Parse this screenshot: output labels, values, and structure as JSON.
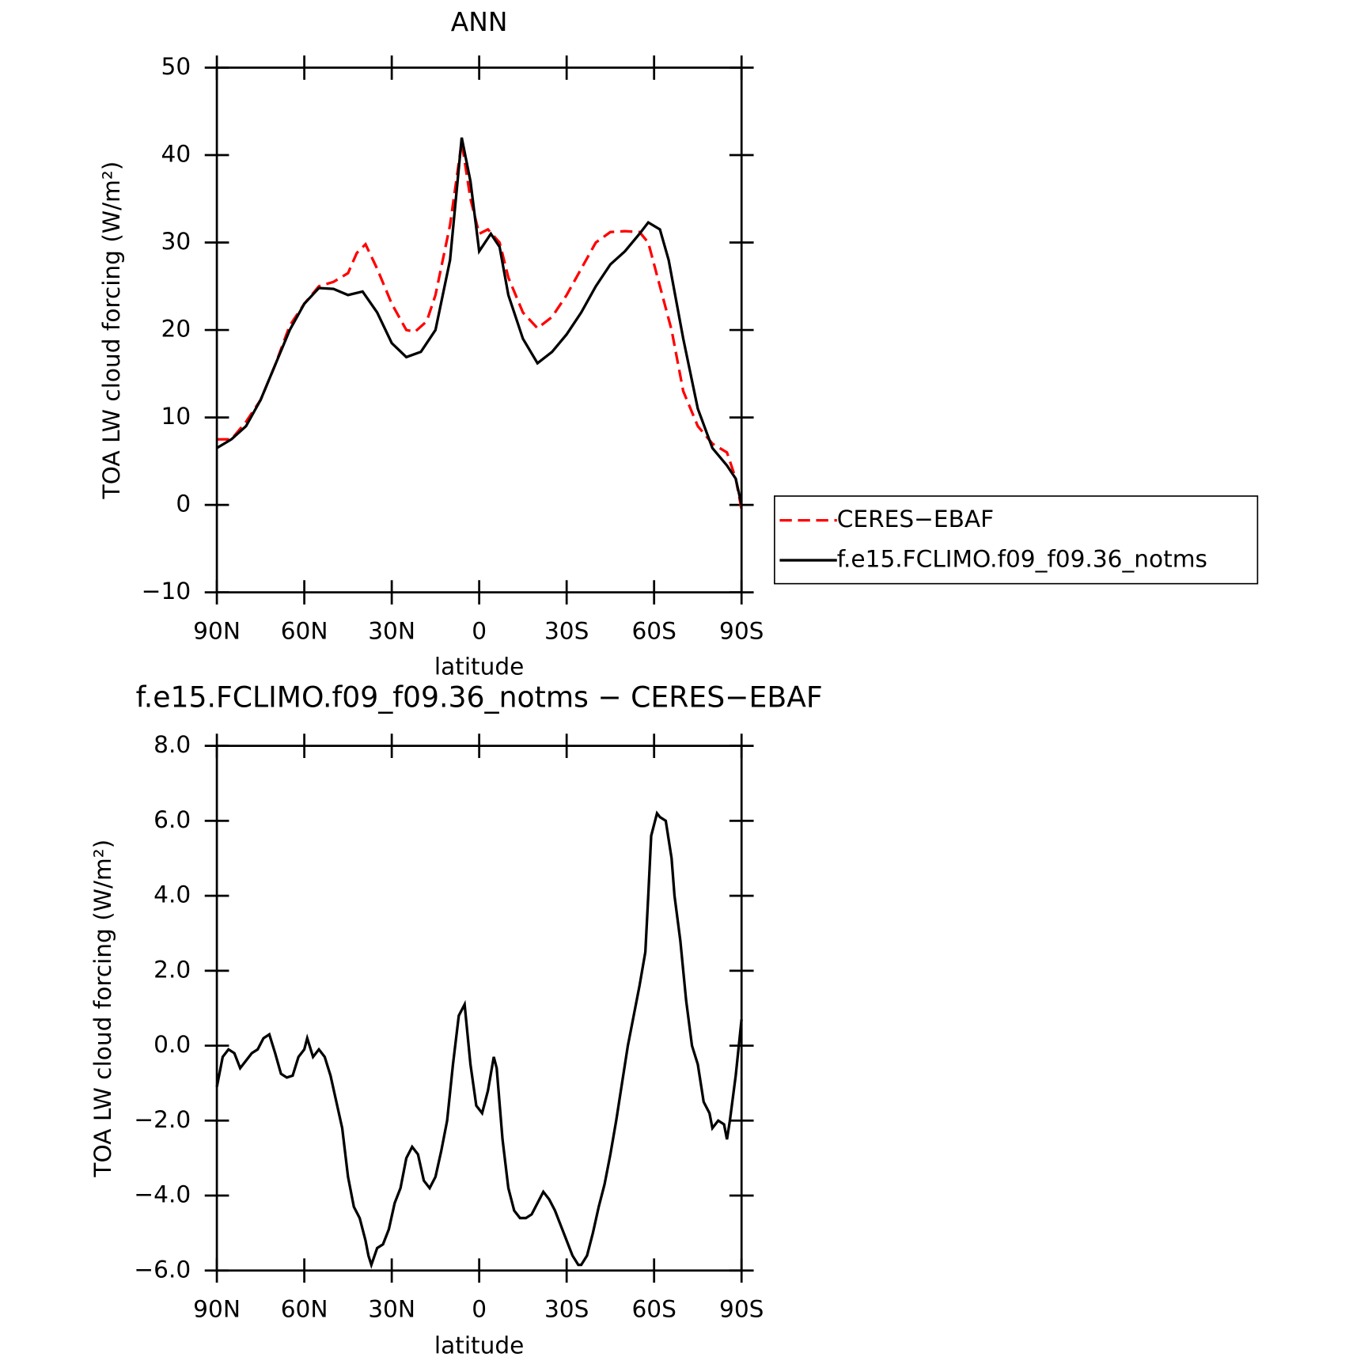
{
  "chart_data": [
    {
      "type": "line",
      "title": "ANN",
      "xlabel": "latitude",
      "ylabel": "TOA LW cloud forcing (W/m²)",
      "xlim": [
        90,
        -90
      ],
      "xticks": [
        {
          "value": 90,
          "label": "90N"
        },
        {
          "value": 60,
          "label": "60N"
        },
        {
          "value": 30,
          "label": "30N"
        },
        0,
        {
          "value": -30,
          "label": "30S"
        },
        {
          "value": -60,
          "label": "60S"
        },
        {
          "value": -90,
          "label": "90S"
        }
      ],
      "ylim": [
        -10,
        50
      ],
      "yticks": [
        {
          "value": -10,
          "label": "−10"
        },
        0,
        10,
        20,
        30,
        40,
        50
      ],
      "legend": "right",
      "series": [
        {
          "name": "CERES−EBAF",
          "color": "#ff0000",
          "dash": true,
          "x": [
            90,
            85,
            80,
            75,
            70,
            65,
            60,
            55,
            50,
            45,
            42,
            39,
            35,
            30,
            25,
            22,
            18,
            15,
            10,
            6,
            3,
            0,
            -3,
            -7,
            -10,
            -15,
            -20,
            -25,
            -30,
            -35,
            -40,
            -45,
            -50,
            -55,
            -58,
            -62,
            -66,
            -70,
            -75,
            -80,
            -85,
            -88,
            -90
          ],
          "values": [
            7.5,
            7.5,
            9.5,
            12,
            16,
            20.5,
            23,
            25,
            25.5,
            26.5,
            28.8,
            29.8,
            27,
            23,
            20,
            19.8,
            21,
            24,
            32,
            41.5,
            35,
            31,
            31.5,
            30,
            26,
            22,
            20.2,
            21.5,
            24,
            27,
            30,
            31.2,
            31.3,
            31.2,
            30,
            25,
            20,
            13,
            9,
            7,
            6,
            3,
            -0.5
          ]
        },
        {
          "name": "f.e15.FCLIMO.f09_f09.36_notms",
          "color": "#000000",
          "dash": false,
          "x": [
            90,
            85,
            80,
            75,
            70,
            65,
            60,
            55,
            50,
            45,
            40,
            35,
            30,
            25,
            20,
            15,
            10,
            6,
            3,
            0,
            -4,
            -7,
            -10,
            -15,
            -20,
            -25,
            -30,
            -35,
            -40,
            -45,
            -50,
            -55,
            -58,
            -62,
            -65,
            -70,
            -75,
            -80,
            -85,
            -88,
            -90
          ],
          "values": [
            6.5,
            7.5,
            9,
            12,
            16,
            20,
            23,
            24.8,
            24.7,
            24,
            24.4,
            22,
            18.5,
            16.9,
            17.5,
            20,
            28,
            42,
            37,
            29,
            31,
            29.5,
            24,
            19,
            16.2,
            17.5,
            19.5,
            22,
            25,
            27.5,
            29,
            31,
            32.3,
            31.5,
            28,
            19,
            11,
            6.5,
            4.5,
            3,
            0
          ]
        }
      ]
    },
    {
      "type": "line",
      "title": "f.e15.FCLIMO.f09_f09.36_notms − CERES−EBAF",
      "xlabel": "latitude",
      "ylabel": "TOA LW cloud forcing (W/m²)",
      "xlim": [
        90,
        -90
      ],
      "xticks": [
        {
          "value": 90,
          "label": "90N"
        },
        {
          "value": 60,
          "label": "60N"
        },
        {
          "value": 30,
          "label": "30N"
        },
        0,
        {
          "value": -30,
          "label": "30S"
        },
        {
          "value": -60,
          "label": "60S"
        },
        {
          "value": -90,
          "label": "90S"
        }
      ],
      "ylim": [
        -6,
        8
      ],
      "yticks": [
        {
          "value": -6,
          "label": "−6.0"
        },
        {
          "value": -4,
          "label": "−4.0"
        },
        {
          "value": -2,
          "label": "−2.0"
        },
        {
          "value": 0,
          "label": "0.0"
        },
        {
          "value": 2,
          "label": "2.0"
        },
        {
          "value": 4,
          "label": "4.0"
        },
        {
          "value": 6,
          "label": "6.0"
        },
        {
          "value": 8,
          "label": "8.0"
        }
      ],
      "series": [
        {
          "color": "#000000",
          "dash": false,
          "x": [
            90,
            88,
            86,
            84,
            82,
            80,
            78,
            76,
            74,
            72,
            70,
            68,
            66,
            64,
            62,
            60,
            59,
            57,
            55,
            53,
            51,
            49,
            47,
            45,
            43,
            41,
            39,
            38,
            37,
            35,
            33,
            31,
            29,
            27,
            25,
            23,
            21,
            19,
            17,
            15,
            13,
            11,
            9,
            7,
            5,
            3,
            1,
            -1,
            -3,
            -5,
            -6,
            -8,
            -10,
            -12,
            -14,
            -16,
            -18,
            -20,
            -22,
            -24,
            -26,
            -28,
            -30,
            -32,
            -34,
            -35,
            -37,
            -39,
            -41,
            -43,
            -45,
            -47,
            -49,
            -51,
            -53,
            -55,
            -57,
            -58,
            -59,
            -61,
            -62,
            -64,
            -66,
            -67,
            -69,
            -71,
            -73,
            -75,
            -77,
            -79,
            -80,
            -82,
            -84,
            -85,
            -86,
            -88,
            -90
          ],
          "values": [
            -1.1,
            -0.3,
            -0.1,
            -0.2,
            -0.6,
            -0.4,
            -0.2,
            -0.1,
            0.2,
            0.3,
            -0.2,
            -0.75,
            -0.85,
            -0.8,
            -0.3,
            -0.1,
            0.2,
            -0.3,
            -0.1,
            -0.3,
            -0.8,
            -1.5,
            -2.2,
            -3.5,
            -4.3,
            -4.6,
            -5.2,
            -5.6,
            -5.85,
            -5.4,
            -5.3,
            -4.9,
            -4.2,
            -3.8,
            -3.0,
            -2.7,
            -2.9,
            -3.6,
            -3.8,
            -3.5,
            -2.8,
            -2.0,
            -0.5,
            0.8,
            1.1,
            -0.5,
            -1.6,
            -1.8,
            -1.2,
            -0.3,
            -0.6,
            -2.5,
            -3.8,
            -4.4,
            -4.6,
            -4.6,
            -4.5,
            -4.2,
            -3.9,
            -4.1,
            -4.4,
            -4.8,
            -5.2,
            -5.6,
            -5.85,
            -5.85,
            -5.6,
            -5.0,
            -4.3,
            -3.7,
            -2.9,
            -2.0,
            -1.0,
            0,
            0.8,
            1.6,
            2.5,
            4.0,
            5.6,
            6.2,
            6.1,
            6.0,
            5.0,
            4.0,
            2.8,
            1.2,
            0.0,
            -0.5,
            -1.5,
            -1.8,
            -2.2,
            -2.0,
            -2.1,
            -2.5,
            -2.0,
            -0.8,
            0.7
          ]
        }
      ]
    }
  ]
}
